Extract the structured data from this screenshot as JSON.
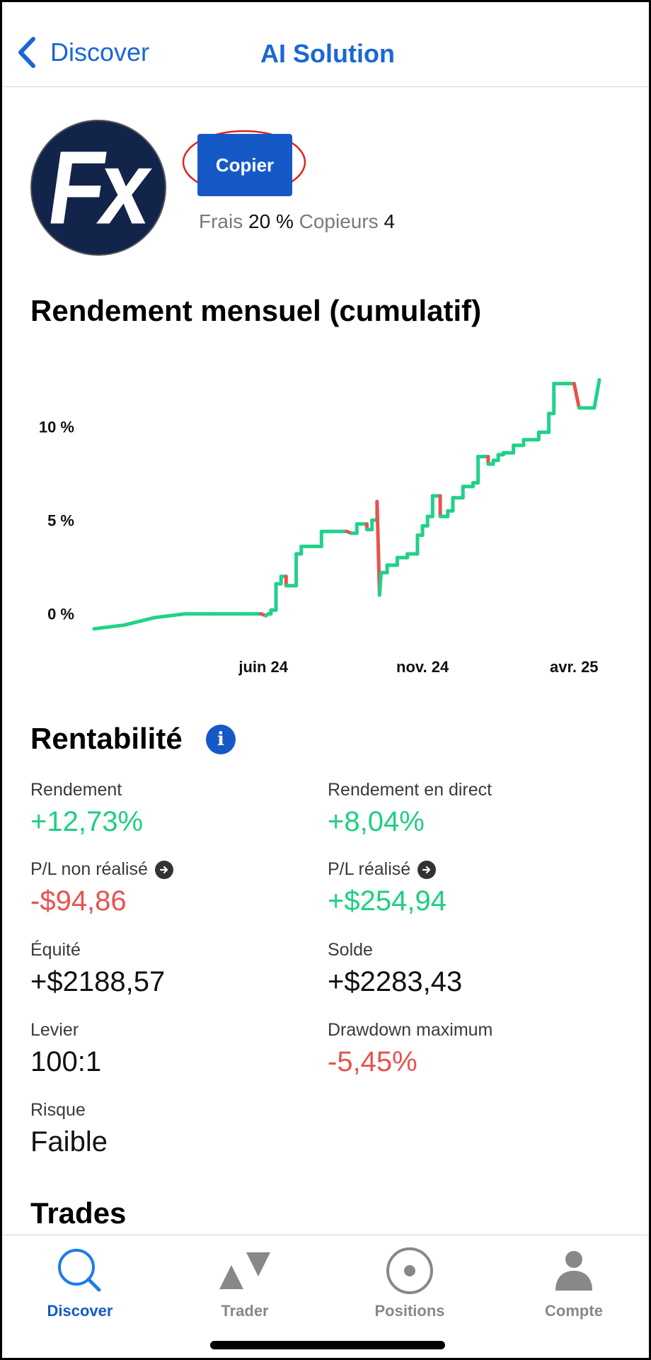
{
  "header": {
    "back_label": "Discover",
    "title": "AI Solution"
  },
  "profile": {
    "avatar_text": "Fx",
    "copy_label": "Copier",
    "fees_label": "Frais",
    "fees_value": "20 %",
    "copiers_label": "Copieurs",
    "copiers_value": "4"
  },
  "chart_section": {
    "title": "Rendement mensuel (cumulatif)"
  },
  "chart_data": {
    "type": "line",
    "title": "Rendement mensuel (cumulatif)",
    "x_tick_labels": [
      "juin 24",
      "nov. 24",
      "avr. 25"
    ],
    "y_tick_labels": [
      "0 %",
      "5 %",
      "10 %"
    ],
    "y_ticks": [
      0,
      5,
      10
    ],
    "ylim": [
      -1,
      13
    ],
    "xlim": [
      0,
      100
    ],
    "colors": {
      "up": "#21d18a",
      "down": "#e8524f"
    },
    "series": [
      {
        "points": [
          [
            0,
            -0.8
          ],
          [
            6,
            -0.6
          ],
          [
            12,
            -0.2
          ],
          [
            18,
            0
          ],
          [
            23,
            0
          ],
          [
            30,
            0
          ],
          [
            33,
            0
          ],
          [
            34,
            -0.1
          ],
          [
            34.5,
            0
          ],
          [
            35,
            0
          ],
          [
            35,
            0.2
          ],
          [
            36,
            0.2
          ],
          [
            36,
            1.6
          ],
          [
            37,
            1.6
          ],
          [
            37,
            2.0
          ],
          [
            38,
            2.0
          ],
          [
            38,
            1.5
          ],
          [
            40,
            1.5
          ],
          [
            40,
            3.2
          ],
          [
            41,
            3.2
          ],
          [
            41,
            3.6
          ],
          [
            45,
            3.6
          ],
          [
            45,
            4.4
          ],
          [
            50,
            4.4
          ],
          [
            51,
            4.3
          ],
          [
            52,
            4.3
          ],
          [
            52,
            4.8
          ],
          [
            54,
            4.8
          ],
          [
            54,
            4.5
          ],
          [
            55,
            4.5
          ],
          [
            55,
            5.0
          ],
          [
            56,
            5.0
          ],
          [
            56,
            6.0
          ],
          [
            56.5,
            1.0
          ],
          [
            56.8,
            2.2
          ],
          [
            58,
            2.2
          ],
          [
            58,
            2.6
          ],
          [
            60,
            2.6
          ],
          [
            60,
            3.0
          ],
          [
            62,
            3.0
          ],
          [
            62,
            3.2
          ],
          [
            64,
            3.2
          ],
          [
            64,
            4.2
          ],
          [
            65,
            4.2
          ],
          [
            65,
            4.7
          ],
          [
            66,
            4.7
          ],
          [
            66,
            5.2
          ],
          [
            67,
            5.2
          ],
          [
            67,
            6.3
          ],
          [
            68.5,
            6.3
          ],
          [
            68.5,
            5.2
          ],
          [
            70,
            5.2
          ],
          [
            70,
            5.5
          ],
          [
            71,
            5.5
          ],
          [
            71,
            6.2
          ],
          [
            73,
            6.2
          ],
          [
            73,
            6.8
          ],
          [
            75,
            6.8
          ],
          [
            75,
            7.0
          ],
          [
            76,
            7.0
          ],
          [
            76,
            8.4
          ],
          [
            78,
            8.4
          ],
          [
            78,
            8.0
          ],
          [
            79,
            8.0
          ],
          [
            79,
            8.2
          ],
          [
            80,
            8.2
          ],
          [
            80,
            8.5
          ],
          [
            81,
            8.5
          ],
          [
            81,
            8.6
          ],
          [
            83,
            8.6
          ],
          [
            83,
            9.0
          ],
          [
            85,
            9.0
          ],
          [
            85,
            9.3
          ],
          [
            88,
            9.3
          ],
          [
            88,
            9.7
          ],
          [
            90,
            9.7
          ],
          [
            90,
            10.7
          ],
          [
            91,
            10.7
          ],
          [
            91,
            12.3
          ],
          [
            94,
            12.3
          ],
          [
            95,
            12.3
          ],
          [
            96,
            11.0
          ],
          [
            99,
            11.0
          ],
          [
            100,
            12.5
          ]
        ]
      }
    ]
  },
  "profitability": {
    "title": "Rentabilité",
    "metrics": [
      {
        "label": "Rendement",
        "value": "+12,73%"
      },
      {
        "label": "Rendement en direct",
        "value": "+8,04%"
      },
      {
        "label": "P/L non réalisé",
        "value": "-$94,86"
      },
      {
        "label": "P/L réalisé",
        "value": "+$254,94"
      },
      {
        "label": "Équité",
        "value": "+$2188,57"
      },
      {
        "label": "Solde",
        "value": "+$2283,43"
      },
      {
        "label": "Levier",
        "value": "100:1"
      },
      {
        "label": "Drawdown maximum",
        "value": "-5,45%"
      },
      {
        "label": "Risque",
        "value": "Faible"
      }
    ]
  },
  "trades": {
    "title": "Trades"
  },
  "tabbar": {
    "tabs": [
      {
        "label": "Discover",
        "icon": "search-icon"
      },
      {
        "label": "Trader",
        "icon": "trader-icon"
      },
      {
        "label": "Positions",
        "icon": "positions-icon"
      },
      {
        "label": "Compte",
        "icon": "account-icon"
      }
    ]
  }
}
